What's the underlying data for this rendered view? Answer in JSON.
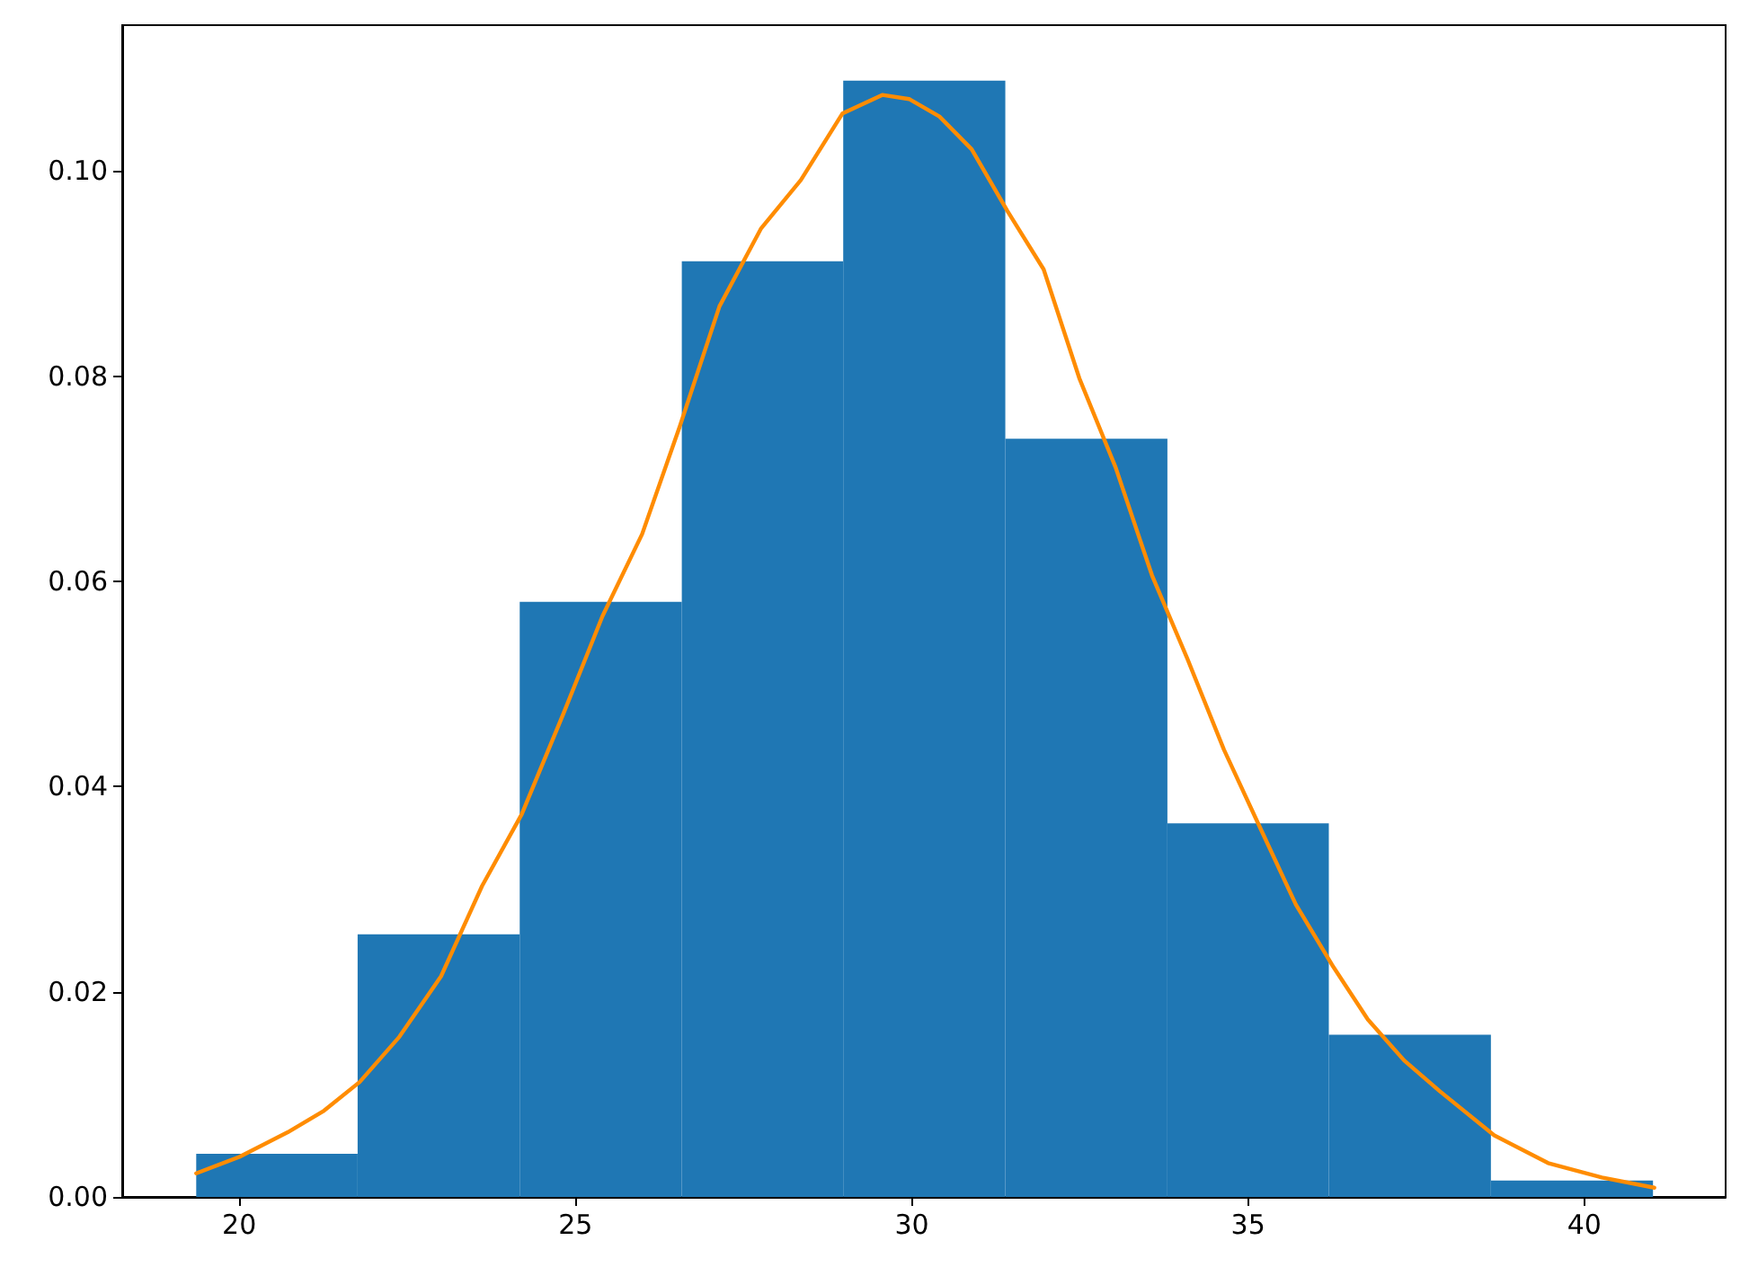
{
  "chart_data": {
    "type": "histogram",
    "bins": [
      19.36,
      21.76,
      24.17,
      26.58,
      28.98,
      31.39,
      33.8,
      36.2,
      38.61,
      41.02
    ],
    "values": [
      0.0042,
      0.0256,
      0.058,
      0.0912,
      0.1088,
      0.0739,
      0.0364,
      0.0158,
      0.0016
    ],
    "color": "#1f77b4",
    "series": [
      {
        "type": "line",
        "color": "#ff8c00",
        "x": [
          19.36,
          20.0,
          20.72,
          21.26,
          21.79,
          22.38,
          23.0,
          23.61,
          24.2,
          24.82,
          25.4,
          25.99,
          26.55,
          27.14,
          27.76,
          28.35,
          28.97,
          29.56,
          29.96,
          30.41,
          30.89,
          31.42,
          31.96,
          32.49,
          33.03,
          33.57,
          34.1,
          34.64,
          35.17,
          35.71,
          36.25,
          36.78,
          37.32,
          37.85,
          38.66,
          39.46,
          40.26,
          41.04
        ],
        "values": [
          0.0023,
          0.0039,
          0.0063,
          0.0084,
          0.0112,
          0.0156,
          0.0215,
          0.0303,
          0.0373,
          0.0471,
          0.0566,
          0.0646,
          0.0751,
          0.0868,
          0.0944,
          0.0991,
          0.1056,
          0.1074,
          0.107,
          0.1053,
          0.1021,
          0.0961,
          0.0904,
          0.0798,
          0.0711,
          0.0606,
          0.0524,
          0.0436,
          0.0361,
          0.0285,
          0.0226,
          0.0173,
          0.0133,
          0.0103,
          0.006,
          0.0033,
          0.0019,
          0.0009
        ]
      }
    ],
    "xlim": [
      18.26,
      42.1
    ],
    "xticks": [
      20,
      25,
      30,
      35,
      40
    ],
    "ylim": [
      0,
      0.1142
    ],
    "yticks": [
      {
        "value": 0,
        "label": "0.00"
      },
      {
        "value": 0.02,
        "label": "0.02"
      },
      {
        "value": 0.04,
        "label": "0.04"
      },
      {
        "value": 0.06,
        "label": "0.06"
      },
      {
        "value": 0.08,
        "label": "0.08"
      },
      {
        "value": 0.1,
        "label": "0.10"
      }
    ],
    "grid": false,
    "marker": "none",
    "line_style": "solid"
  }
}
